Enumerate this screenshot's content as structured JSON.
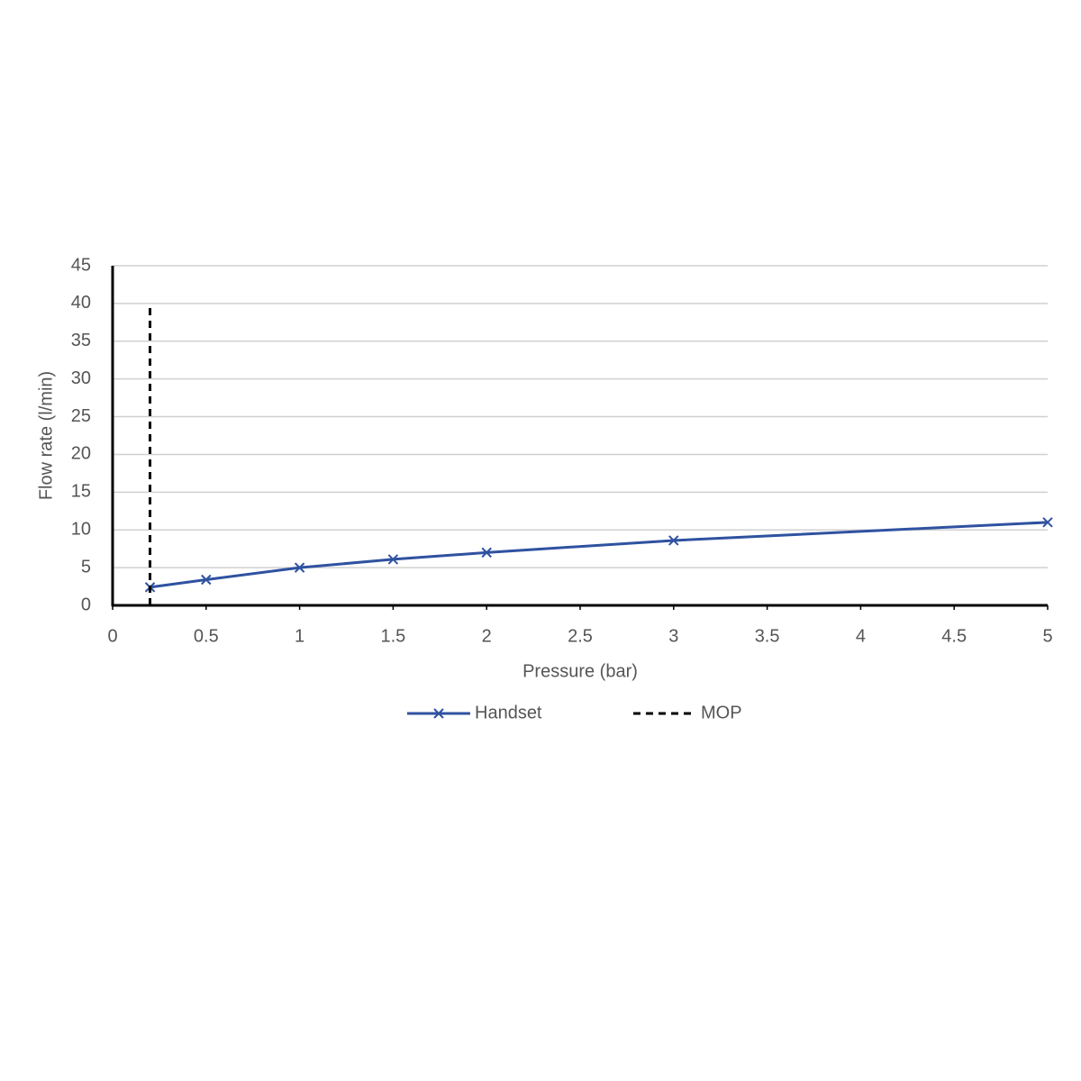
{
  "chart_data": {
    "type": "line",
    "xlabel": "Pressure (bar)",
    "ylabel": "Flow rate (l/min)",
    "xlim": [
      0,
      5
    ],
    "xticks": [
      0,
      0.5,
      1,
      1.5,
      2,
      2.5,
      3,
      3.5,
      4,
      4.5,
      5
    ],
    "ylim": [
      0,
      45
    ],
    "yticks": [
      0,
      5,
      10,
      15,
      20,
      25,
      30,
      35,
      40,
      45
    ],
    "grid": true,
    "legend": "bottom",
    "series": [
      {
        "name": "Handset",
        "color": "#2f52a0",
        "line_style": "solid",
        "marker": "x",
        "x": [
          0.2,
          0.5,
          1,
          1.5,
          2,
          3,
          5
        ],
        "values": [
          2.4,
          3.4,
          5,
          6.1,
          7,
          8.6,
          11
        ]
      },
      {
        "name": "MOP",
        "color": "#000000",
        "line_style": "dashed",
        "marker": "none",
        "x": [
          0.2,
          0.2
        ],
        "values": [
          0,
          40
        ]
      }
    ]
  }
}
